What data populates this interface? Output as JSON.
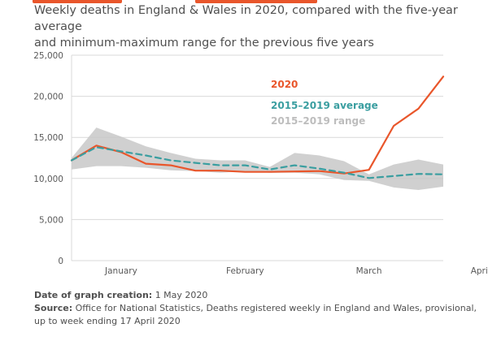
{
  "title_line1": "Weekly deaths in England & Wales in 2020, compared with the five-year average",
  "title_line2": "and minimum-maximum range for the previous five years",
  "footer": {
    "date_label": "Date of graph creation:",
    "date_value": "1 May 2020",
    "source_label": "Source:",
    "source_value": "Office for National Statistics, Deaths registered weekly in England and Wales, provisional, up to week ending 17 April 2020"
  },
  "colors": {
    "series_2020": "#e9562b",
    "average": "#3a9ea0",
    "range": "#c8c8c8",
    "axis_text": "#595959",
    "gridline": "#d9d9d9"
  },
  "chart_data": {
    "type": "line",
    "x_labels": [
      "January",
      "February",
      "March",
      "April"
    ],
    "x_label_weeks": [
      3,
      8,
      13,
      17.5
    ],
    "weeks": [
      1,
      2,
      3,
      4,
      5,
      6,
      7,
      8,
      9,
      10,
      11,
      12,
      13,
      14,
      15,
      16,
      17,
      18
    ],
    "ylim": [
      0,
      25000
    ],
    "yticks": [
      "0",
      "5,000",
      "10,000",
      "15,000",
      "20,000",
      "25,000"
    ],
    "ytick_values": [
      0,
      5000,
      10000,
      15000,
      20000,
      25000
    ],
    "grid": true,
    "series": [
      {
        "name": "2020",
        "style": "solid",
        "values": [
          12200,
          14000,
          13200,
          11800,
          11600,
          10950,
          10950,
          10800,
          10800,
          10850,
          10900,
          10600,
          11050,
          16400,
          18500,
          22400
        ]
      },
      {
        "name": "2015–2019 average",
        "style": "dashed",
        "values": [
          12200,
          13800,
          13300,
          12800,
          12200,
          11900,
          11600,
          11600,
          11100,
          11600,
          11200,
          10700,
          10050,
          10300,
          10550,
          10500
        ]
      }
    ],
    "range": {
      "name": "2015–2019 range",
      "min": [
        11100,
        11500,
        11500,
        11300,
        11000,
        10900,
        10700,
        10900,
        10700,
        10700,
        10500,
        9800,
        9700,
        8900,
        8600,
        9000
      ],
      "max": [
        12500,
        16200,
        15100,
        13900,
        13100,
        12400,
        12200,
        12200,
        11400,
        13100,
        12800,
        12100,
        10500,
        11700,
        12300,
        11700
      ]
    }
  }
}
